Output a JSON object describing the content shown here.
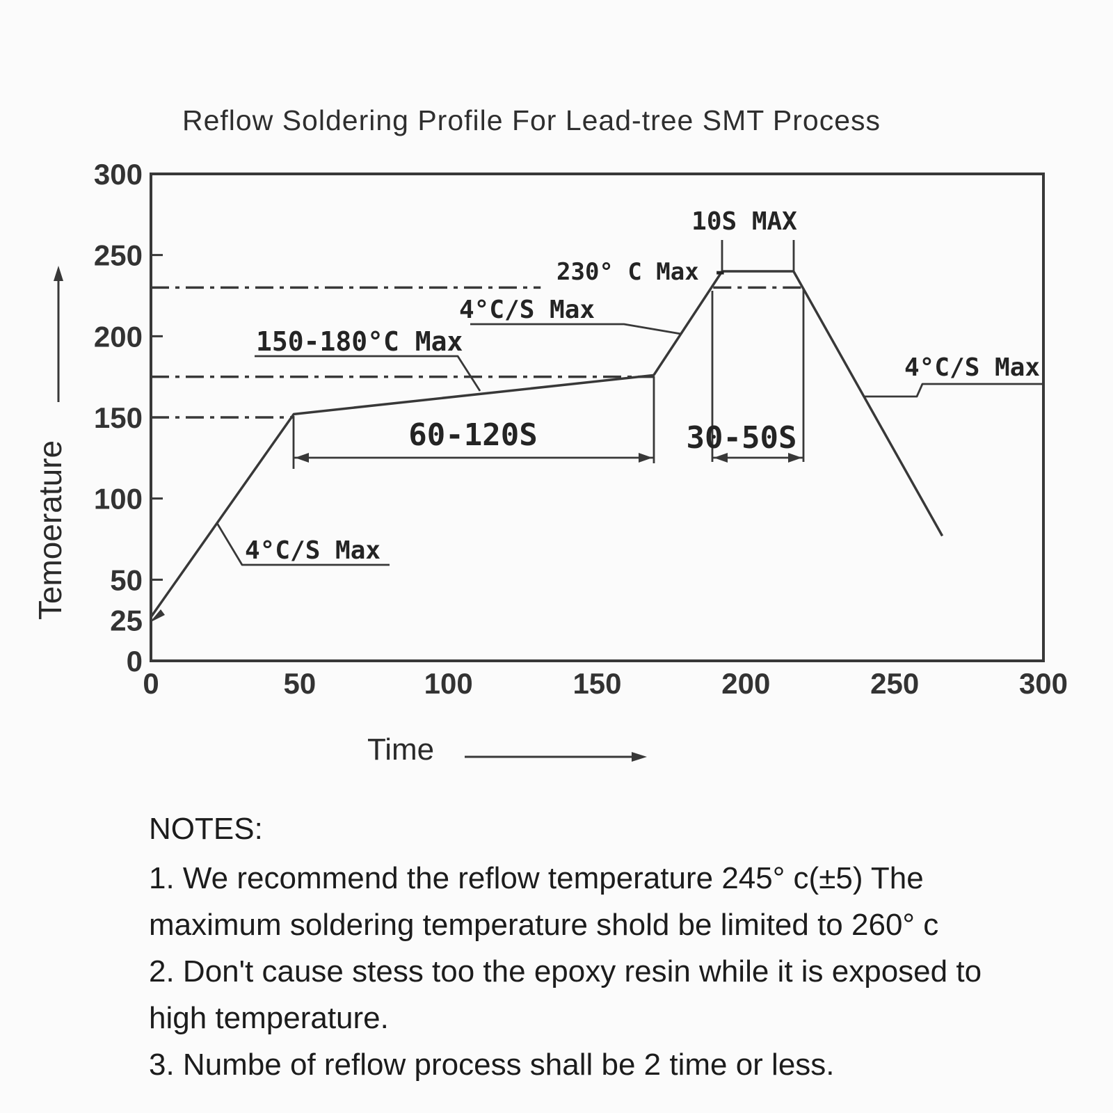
{
  "title": "Reflow Soldering Profile For Lead-tree SMT Process",
  "chart_data": {
    "type": "line",
    "title": "Reflow Soldering Profile For Lead-tree SMT Process",
    "xlabel": "Time",
    "ylabel": "Temoerature",
    "xlim": [
      0,
      300
    ],
    "ylim": [
      0,
      300
    ],
    "x_ticks": [
      0,
      50,
      100,
      150,
      200,
      250,
      300
    ],
    "y_ticks": [
      300,
      250,
      200,
      150,
      100,
      50,
      25,
      0
    ],
    "grid": false,
    "legend": "none",
    "series": [
      {
        "name": "reflow temperature profile",
        "points": [
          [
            0,
            27
          ],
          [
            48,
            152
          ],
          [
            169,
            176
          ],
          [
            192,
            240
          ],
          [
            216,
            240
          ],
          [
            266,
            77
          ]
        ]
      }
    ],
    "reference_lines": [
      {
        "temp": 230,
        "t_start": 0,
        "t_end": 131,
        "style": "dash-dot"
      },
      {
        "temp": 230,
        "t_start": 189,
        "t_end": 220,
        "style": "dash-dot"
      },
      {
        "temp": 175,
        "t_start": 0,
        "t_end": 169,
        "style": "dash-dot"
      },
      {
        "temp": 150,
        "t_start": 0,
        "t_end": 48,
        "style": "dash-dot"
      }
    ],
    "annotations": [
      {
        "id": "ramp-rate",
        "label": "4°C/S  Max"
      },
      {
        "id": "soak-temp-range",
        "label": "150-180°C Max"
      },
      {
        "id": "soak-duration",
        "label": "60-120S"
      },
      {
        "id": "ramp-to-peak-rate",
        "label": "4°C/S  Max"
      },
      {
        "id": "peak-temp-limit",
        "label": "230° C Max -"
      },
      {
        "id": "time-above-peak",
        "label": "10S MAX"
      },
      {
        "id": "peak-duration",
        "label": "30-50S"
      },
      {
        "id": "cooling-rate",
        "label": "4°C/S  Max"
      }
    ]
  },
  "notes": {
    "heading": "NOTES:",
    "lines": [
      "1. We recommend the reflow temperature 245° c(±5) The",
      "maximum soldering temperature shold be limited to 260° c",
      "2. Don't cause stess too the epoxy resin while it is exposed to",
      "high temperature.",
      "3. Numbe of reflow process shall be 2 time or less."
    ]
  }
}
